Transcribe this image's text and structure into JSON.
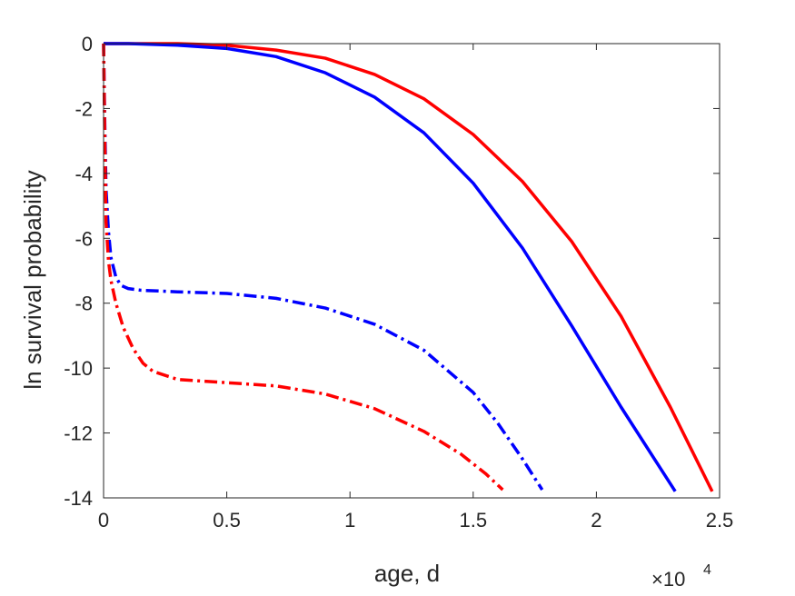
{
  "chart_data": {
    "type": "line",
    "title": "",
    "xlabel": "age, d",
    "ylabel": "ln survival probability",
    "x_exponent_label": {
      "base": "×10",
      "exp": "4"
    },
    "xlim": [
      0,
      2.5
    ],
    "ylim": [
      -14,
      0
    ],
    "x_unit_multiplier": 10000,
    "xticks": [
      0,
      0.5,
      1,
      1.5,
      2,
      2.5
    ],
    "xtick_labels": [
      "0",
      "0.5",
      "1",
      "1.5",
      "2",
      "2.5"
    ],
    "yticks": [
      0,
      -2,
      -4,
      -6,
      -8,
      -10,
      -12,
      -14
    ],
    "ytick_labels": [
      "0",
      "-2",
      "-4",
      "-6",
      "-8",
      "-10",
      "-12",
      "-14"
    ],
    "grid": false,
    "legend": null,
    "series": [
      {
        "color": "#ff0000",
        "style": "solid",
        "x": [
          0,
          0.01,
          0.1,
          0.3,
          0.5,
          0.7,
          0.9,
          1.1,
          1.3,
          1.5,
          1.7,
          1.9,
          2.1,
          2.3,
          2.47
        ],
        "y": [
          0,
          0,
          0,
          0,
          -0.05,
          -0.2,
          -0.45,
          -0.95,
          -1.7,
          -2.8,
          -4.25,
          -6.1,
          -8.4,
          -11.2,
          -13.8
        ]
      },
      {
        "color": "#0000ff",
        "style": "solid",
        "x": [
          0,
          0.01,
          0.1,
          0.3,
          0.5,
          0.7,
          0.9,
          1.1,
          1.3,
          1.5,
          1.7,
          1.9,
          2.1,
          2.32
        ],
        "y": [
          0,
          0,
          0,
          -0.05,
          -0.15,
          -0.4,
          -0.9,
          -1.65,
          -2.75,
          -4.3,
          -6.3,
          -8.7,
          -11.2,
          -13.8
        ]
      },
      {
        "color": "#0000ff",
        "style": "dashdot",
        "x": [
          0,
          0.005,
          0.01,
          0.02,
          0.03,
          0.05,
          0.07,
          0.1,
          0.15,
          0.3,
          0.5,
          0.7,
          0.9,
          1.1,
          1.3,
          1.5,
          1.6,
          1.7,
          1.78
        ],
        "y": [
          0,
          -2.5,
          -4.5,
          -5.8,
          -6.6,
          -7.2,
          -7.45,
          -7.55,
          -7.6,
          -7.65,
          -7.7,
          -7.85,
          -8.15,
          -8.65,
          -9.45,
          -10.75,
          -11.7,
          -12.8,
          -13.75
        ]
      },
      {
        "color": "#ff0000",
        "style": "dashdot",
        "x": [
          0,
          0.005,
          0.01,
          0.02,
          0.03,
          0.05,
          0.08,
          0.12,
          0.16,
          0.2,
          0.3,
          0.5,
          0.7,
          0.9,
          1.1,
          1.3,
          1.45,
          1.55,
          1.62
        ],
        "y": [
          0,
          -3,
          -5.5,
          -6.7,
          -7.3,
          -8.0,
          -8.75,
          -9.4,
          -9.85,
          -10.1,
          -10.35,
          -10.45,
          -10.55,
          -10.8,
          -11.25,
          -11.95,
          -12.65,
          -13.25,
          -13.75
        ]
      }
    ]
  }
}
